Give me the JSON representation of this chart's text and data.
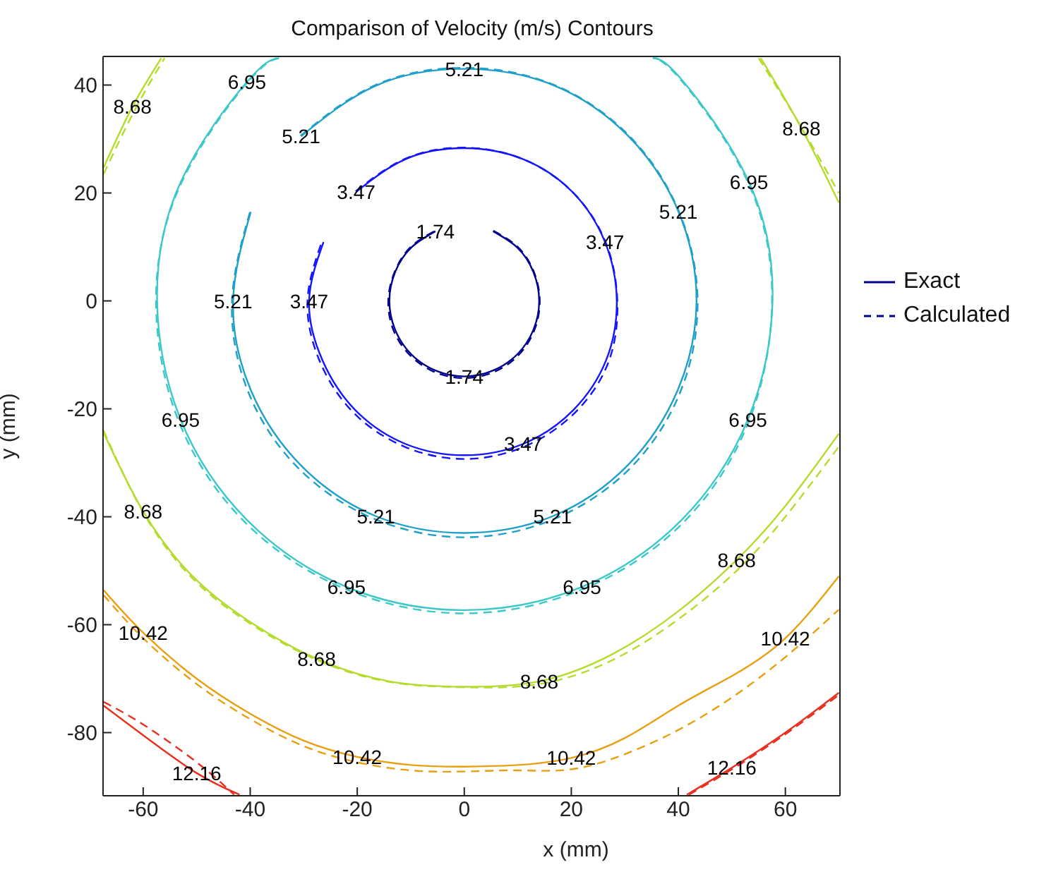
{
  "chart_data": {
    "type": "line",
    "title": "Comparison of Velocity (m/s) Contours",
    "xlabel": "x (mm)",
    "ylabel": "y (mm)",
    "xlim": [
      -67.5,
      70.2
    ],
    "ylim": [
      -91.7,
      45.3
    ],
    "xticks": [
      -60,
      -40,
      -20,
      0,
      20,
      40,
      60
    ],
    "yticks": [
      -80,
      -60,
      -40,
      -20,
      0,
      20,
      40
    ],
    "grid": false,
    "marker": "none",
    "legend": "right",
    "series": [
      {
        "name": "Exact",
        "color": "#00008f",
        "line_style": "solid",
        "x": [
          5.4,
          9.9,
          12.9,
          14,
          12.9,
          9.9,
          5.4,
          0,
          -5.4,
          -9.9,
          -12.9,
          -14,
          -12.9,
          -9.9,
          -5.4
        ],
        "values": [
          12.9,
          9.9,
          5.4,
          0,
          -5.4,
          -9.9,
          -12.9,
          -14,
          -12.9,
          -9.9,
          -5.4,
          0,
          5.4,
          9.9,
          12.9
        ]
      },
      {
        "name": "Calculated",
        "color": "#00008f",
        "line_style": "dashed",
        "x": [
          5.4,
          10,
          13,
          14.1,
          13.1,
          10.1,
          5.5,
          0,
          -5.5,
          -10.1,
          -13.2,
          -14.2,
          -13,
          -10,
          -5.4
        ],
        "values": [
          13,
          10,
          5.4,
          0,
          -5.4,
          -10.1,
          -13.2,
          -14.3,
          -13.2,
          -10.1,
          -5.5,
          0,
          5.4,
          10,
          13
        ]
      },
      {
        "color": "#1414ff",
        "line_style": "solid",
        "x": [
          -20.2,
          -10.9,
          0,
          10.9,
          20.2,
          26.3,
          28.5,
          26.5,
          20.3,
          11,
          0,
          -11,
          -20.3,
          -26.5,
          -29,
          -26.3
        ],
        "values": [
          20.2,
          26.3,
          28.3,
          26.3,
          20.2,
          10.9,
          0,
          -11,
          -20.3,
          -26.5,
          -28.6,
          -26.5,
          -20.3,
          -11,
          0,
          10.9
        ]
      },
      {
        "color": "#1414ff",
        "line_style": "dashed",
        "x": [
          -20.3,
          -10.9,
          0,
          10.9,
          20.2,
          26.4,
          28.6,
          27,
          20.7,
          11.2,
          0,
          -11.2,
          -20.7,
          -27,
          -29.3,
          -26.6
        ],
        "values": [
          20.3,
          26.4,
          28.4,
          26.3,
          20.2,
          10.9,
          0,
          -11.2,
          -20.7,
          -27,
          -29.3,
          -27,
          -20.7,
          -11.2,
          0,
          11
        ]
      },
      {
        "color": "#1ea0c8",
        "line_style": "solid",
        "x": [
          -30.5,
          -16.5,
          0,
          16.6,
          30.6,
          40,
          43.4,
          39.9,
          30.5,
          16.5,
          0,
          -16.5,
          -30.5,
          -39.9,
          -43.2,
          -39.9
        ],
        "values": [
          30.5,
          39.9,
          43,
          40,
          30.6,
          16.6,
          0,
          -16.5,
          -30.5,
          -39.9,
          -43,
          -39.9,
          -30.5,
          -16.5,
          0,
          16.5
        ]
      },
      {
        "color": "#1ea0c8",
        "line_style": "dashed",
        "x": [
          -30.6,
          -16.6,
          0,
          16.6,
          30.7,
          40.1,
          43.6,
          40.4,
          31,
          16.8,
          0,
          -16.8,
          -31,
          -40.4,
          -43.4,
          -40
        ],
        "values": [
          30.6,
          40,
          43.2,
          40.1,
          30.7,
          16.6,
          0,
          -16.8,
          -31,
          -40.4,
          -43.8,
          -40.4,
          -31,
          -16.8,
          0,
          16.6
        ]
      },
      {
        "color": "#3cc8c8",
        "line_style": "solid",
        "x": [
          -35,
          -40.6,
          -53,
          -57.4,
          -53,
          -40.6,
          -22,
          0,
          22,
          40.6,
          53,
          57.6,
          53.2,
          40.8,
          35.5
        ],
        "values": [
          45,
          40.6,
          22,
          0,
          -22,
          -40.6,
          -53,
          -57.3,
          -53,
          -40.6,
          -22,
          0,
          22,
          40.8,
          45
        ]
      },
      {
        "color": "#3cc8c8",
        "line_style": "dashed",
        "x": [
          -34.6,
          -40.4,
          -52.8,
          -57.6,
          -53.4,
          -41,
          -22.2,
          0,
          22.2,
          41,
          53.3,
          57.5,
          53,
          40.6,
          35.2
        ],
        "values": [
          45,
          40.6,
          22,
          0,
          -22.2,
          -41,
          -53.4,
          -57.9,
          -53.4,
          -41,
          -22,
          0,
          22,
          40.8,
          45
        ]
      },
      {
        "color": "#b4dc2c",
        "line_style": "solid",
        "x": [
          -67.4,
          -62,
          -56.6
        ],
        "values": [
          24.7,
          36,
          45
        ]
      },
      {
        "color": "#b4dc2c",
        "line_style": "dashed",
        "x": [
          -67.4,
          -61.5,
          -56
        ],
        "values": [
          23.5,
          35.5,
          45
        ]
      },
      {
        "color": "#b4dc2c",
        "line_style": "solid",
        "x": [
          55.4,
          63,
          70
        ],
        "values": [
          45,
          32,
          18.2
        ]
      },
      {
        "color": "#b4dc2c",
        "line_style": "dashed",
        "x": [
          55,
          62.5,
          70
        ],
        "values": [
          45,
          33,
          20
        ]
      },
      {
        "color": "#b4dc2c",
        "line_style": "solid",
        "x": [
          -67.4,
          -60,
          -50.9,
          -40,
          -27.6,
          -14,
          0,
          14,
          27.6,
          40,
          50.9,
          60,
          70
        ],
        "values": [
          -24.4,
          -39,
          -50.9,
          -59.5,
          -66.3,
          -70.5,
          -71.5,
          -70.5,
          -65.5,
          -57.5,
          -48,
          -38,
          -24.6
        ]
      },
      {
        "color": "#b4dc2c",
        "line_style": "dashed",
        "x": [
          -67.4,
          -60,
          -50.9,
          -40,
          -27.6,
          -14,
          0,
          14,
          27.6,
          40,
          50.9,
          60,
          70
        ],
        "values": [
          -24,
          -39.2,
          -51.3,
          -59.8,
          -66.5,
          -70.6,
          -71.6,
          -71,
          -66.6,
          -59,
          -50,
          -40,
          -27
        ]
      },
      {
        "color": "#e8a010",
        "line_style": "solid",
        "x": [
          -67.4,
          -60,
          -50,
          -40,
          -30,
          -20,
          -10,
          0,
          10,
          20,
          30,
          40,
          50,
          60,
          70
        ],
        "values": [
          -53.6,
          -61.5,
          -70,
          -76.5,
          -81.5,
          -84.5,
          -86,
          -86.3,
          -86,
          -84.7,
          -81,
          -75,
          -69.5,
          -62.5,
          -51
        ]
      },
      {
        "color": "#e8a010",
        "line_style": "dashed",
        "x": [
          -67.4,
          -60,
          -50,
          -40,
          -30,
          -20,
          -10,
          0,
          10,
          20,
          30,
          40,
          50,
          60,
          70
        ],
        "values": [
          -54.5,
          -62.5,
          -71,
          -77.5,
          -82.5,
          -85.5,
          -87,
          -87.2,
          -87,
          -86.8,
          -84,
          -79.5,
          -73.5,
          -66,
          -57.2
        ]
      },
      {
        "color": "#e83020",
        "line_style": "solid",
        "x": [
          -67.4,
          -60,
          -50,
          -42
        ],
        "values": [
          -75,
          -80.5,
          -87.5,
          -91.5
        ]
      },
      {
        "color": "#e83020",
        "line_style": "dashed",
        "x": [
          -67.4,
          -60,
          -50,
          -43
        ],
        "values": [
          -74.3,
          -78.5,
          -85.5,
          -91.5
        ]
      },
      {
        "color": "#e83020",
        "line_style": "solid",
        "x": [
          41.6,
          50,
          60,
          70
        ],
        "values": [
          -91.5,
          -86.5,
          -80,
          -72.6
        ]
      },
      {
        "color": "#e83020",
        "line_style": "dashed",
        "x": [
          42,
          50,
          60,
          70
        ],
        "values": [
          -91.5,
          -86.8,
          -80.3,
          -73
        ]
      }
    ],
    "annotations": [
      {
        "text": "1.74",
        "x": -5.4,
        "y": 12.9
      },
      {
        "text": "1.74",
        "x": 0,
        "y": -14
      },
      {
        "text": "3.47",
        "x": -20.2,
        "y": 20.2
      },
      {
        "text": "3.47",
        "x": 26.3,
        "y": 10.9
      },
      {
        "text": "3.47",
        "x": -29,
        "y": 0
      },
      {
        "text": "3.47",
        "x": 11,
        "y": -26.5
      },
      {
        "text": "5.21",
        "x": 0,
        "y": 43
      },
      {
        "text": "5.21",
        "x": -30.5,
        "y": 30.5
      },
      {
        "text": "5.21",
        "x": -43.2,
        "y": 0
      },
      {
        "text": "5.21",
        "x": 40,
        "y": 16.6
      },
      {
        "text": "5.21",
        "x": -16.5,
        "y": -39.9
      },
      {
        "text": "5.21",
        "x": 16.5,
        "y": -39.9
      },
      {
        "text": "6.95",
        "x": -40.6,
        "y": 40.6
      },
      {
        "text": "6.95",
        "x": 53.2,
        "y": 22
      },
      {
        "text": "6.95",
        "x": -53,
        "y": -22
      },
      {
        "text": "6.95",
        "x": 53,
        "y": -22
      },
      {
        "text": "6.95",
        "x": -22,
        "y": -53
      },
      {
        "text": "6.95",
        "x": 22,
        "y": -53
      },
      {
        "text": "8.68",
        "x": -62,
        "y": 36
      },
      {
        "text": "8.68",
        "x": 63,
        "y": 32
      },
      {
        "text": "8.68",
        "x": -60,
        "y": -39
      },
      {
        "text": "8.68",
        "x": 50.9,
        "y": -48
      },
      {
        "text": "8.68",
        "x": -27.6,
        "y": -66.3
      },
      {
        "text": "8.68",
        "x": 14,
        "y": -70.5
      },
      {
        "text": "10.42",
        "x": -60,
        "y": -61.5
      },
      {
        "text": "10.42",
        "x": 60,
        "y": -62.5
      },
      {
        "text": "10.42",
        "x": -20,
        "y": -84.5
      },
      {
        "text": "10.42",
        "x": 20,
        "y": -84.7
      },
      {
        "text": "12.16",
        "x": -50,
        "y": -87.5
      },
      {
        "text": "12.16",
        "x": 50,
        "y": -86.5
      }
    ]
  }
}
